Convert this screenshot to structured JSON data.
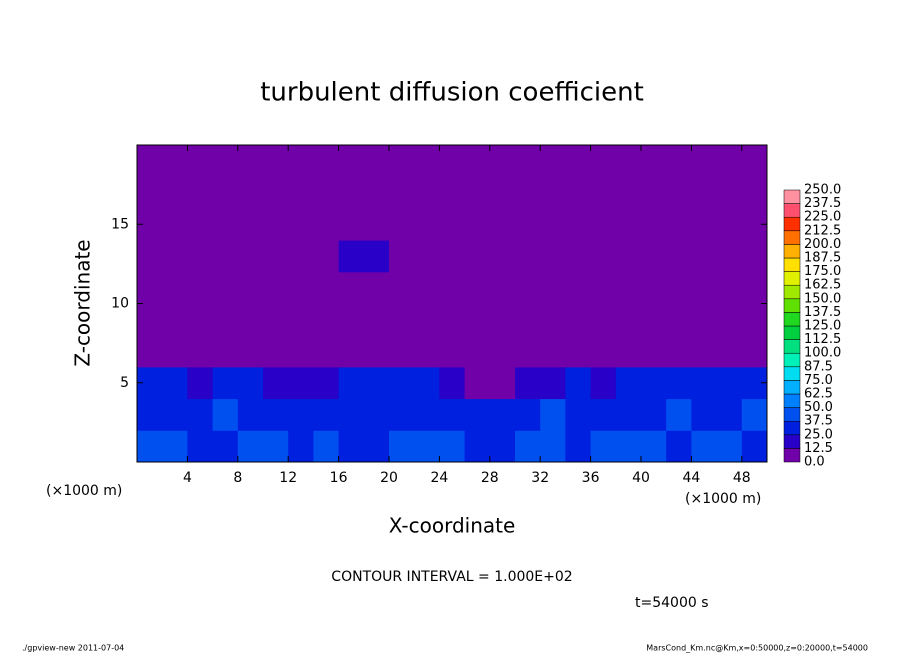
{
  "chart_data": {
    "type": "heatmap",
    "title": "turbulent diffusion coefficient",
    "xlabel": "X-coordinate",
    "ylabel": "Z-coordinate",
    "x_unit": "(×1000 m)",
    "y_unit": "(×1000 m)",
    "xlim": [
      0,
      50
    ],
    "ylim": [
      0,
      20
    ],
    "xticks": [
      4,
      8,
      12,
      16,
      20,
      24,
      28,
      32,
      36,
      40,
      44,
      48
    ],
    "yticks": [
      5,
      10,
      15
    ],
    "x": [
      1,
      3,
      5,
      7,
      9,
      11,
      13,
      15,
      17,
      19,
      21,
      23,
      25,
      27,
      29,
      31,
      33,
      35,
      37,
      39,
      41,
      43,
      45,
      47,
      49
    ],
    "y": [
      1,
      3,
      5,
      7,
      9,
      11,
      13,
      15,
      17,
      19
    ],
    "values": [
      [
        40,
        45,
        35,
        30,
        40,
        45,
        35,
        40,
        30,
        35,
        40,
        45,
        40,
        35,
        30,
        40,
        45,
        35,
        40,
        45,
        40,
        35,
        45,
        40,
        35
      ],
      [
        35,
        30,
        25,
        40,
        30,
        35,
        30,
        25,
        35,
        30,
        25,
        30,
        35,
        30,
        35,
        30,
        40,
        30,
        25,
        35,
        30,
        40,
        35,
        30,
        40
      ],
      [
        30,
        25,
        20,
        30,
        25,
        20,
        15,
        20,
        25,
        25,
        30,
        25,
        15,
        10,
        10,
        15,
        20,
        25,
        20,
        25,
        30,
        35,
        30,
        25,
        30
      ],
      [
        0,
        0,
        0,
        0,
        0,
        0,
        0,
        0,
        0,
        0,
        0,
        0,
        0,
        0,
        0,
        0,
        0,
        0,
        0,
        0,
        0,
        0,
        0,
        0,
        0
      ],
      [
        0,
        0,
        0,
        0,
        0,
        0,
        0,
        0,
        0,
        0,
        0,
        0,
        0,
        0,
        0,
        0,
        0,
        0,
        0,
        0,
        0,
        0,
        0,
        0,
        0
      ],
      [
        0,
        0,
        0,
        0,
        0,
        0,
        0,
        0,
        0,
        0,
        0,
        0,
        0,
        0,
        0,
        0,
        0,
        0,
        0,
        0,
        0,
        0,
        0,
        0,
        0
      ],
      [
        0,
        0,
        0,
        0,
        0,
        0,
        0,
        0,
        15,
        15,
        0,
        0,
        0,
        0,
        0,
        0,
        0,
        0,
        0,
        0,
        0,
        0,
        0,
        0,
        0
      ],
      [
        0,
        0,
        0,
        0,
        0,
        0,
        0,
        0,
        0,
        0,
        0,
        0,
        0,
        0,
        0,
        0,
        0,
        0,
        0,
        0,
        0,
        0,
        0,
        0,
        0
      ],
      [
        0,
        0,
        0,
        0,
        0,
        0,
        0,
        0,
        0,
        0,
        0,
        0,
        0,
        0,
        0,
        0,
        0,
        0,
        0,
        0,
        0,
        0,
        0,
        0,
        0
      ],
      [
        0,
        0,
        0,
        0,
        0,
        0,
        0,
        0,
        0,
        0,
        0,
        0,
        0,
        0,
        0,
        0,
        0,
        0,
        0,
        0,
        0,
        0,
        0,
        0,
        0
      ]
    ],
    "levels": [
      {
        "value": 0,
        "label": "0.0"
      },
      {
        "value": 12.5,
        "label": "12.5"
      },
      {
        "value": 25,
        "label": "25.0"
      },
      {
        "value": 37.5,
        "label": "37.5"
      },
      {
        "value": 50,
        "label": "50.0"
      },
      {
        "value": 62.5,
        "label": "62.5"
      },
      {
        "value": 75,
        "label": "75.0"
      },
      {
        "value": 87.5,
        "label": "87.5"
      },
      {
        "value": 100,
        "label": "100.0"
      },
      {
        "value": 112.5,
        "label": "112.5"
      },
      {
        "value": 125,
        "label": "125.0"
      },
      {
        "value": 137.5,
        "label": "137.5"
      },
      {
        "value": 150,
        "label": "150.0"
      },
      {
        "value": 162.5,
        "label": "162.5"
      },
      {
        "value": 175,
        "label": "175.0"
      },
      {
        "value": 187.5,
        "label": "187.5"
      },
      {
        "value": 200,
        "label": "200.0"
      },
      {
        "value": 212.5,
        "label": "212.5"
      },
      {
        "value": 225,
        "label": "225.0"
      },
      {
        "value": 237.5,
        "label": "237.5"
      },
      {
        "value": 250,
        "label": "250.0"
      }
    ],
    "colors": [
      "#7000a8",
      "#2800c8",
      "#0020e0",
      "#0050f0",
      "#0080ff",
      "#00b0ff",
      "#00dcf0",
      "#00f0b8",
      "#00e080",
      "#00d040",
      "#20d820",
      "#60e000",
      "#a0e800",
      "#e0f000",
      "#ffe000",
      "#ffb000",
      "#ff7000",
      "#ff3000",
      "#ff5070",
      "#ff90a0"
    ],
    "annotations": [
      "CONTOUR INTERVAL = 1.000E+02",
      "t=54000 s"
    ],
    "footer_left": "./gpview-new  2011-07-04",
    "footer_right": "MarsCond_Km.nc@Km,x=0:50000,z=0:20000,t=54000"
  }
}
